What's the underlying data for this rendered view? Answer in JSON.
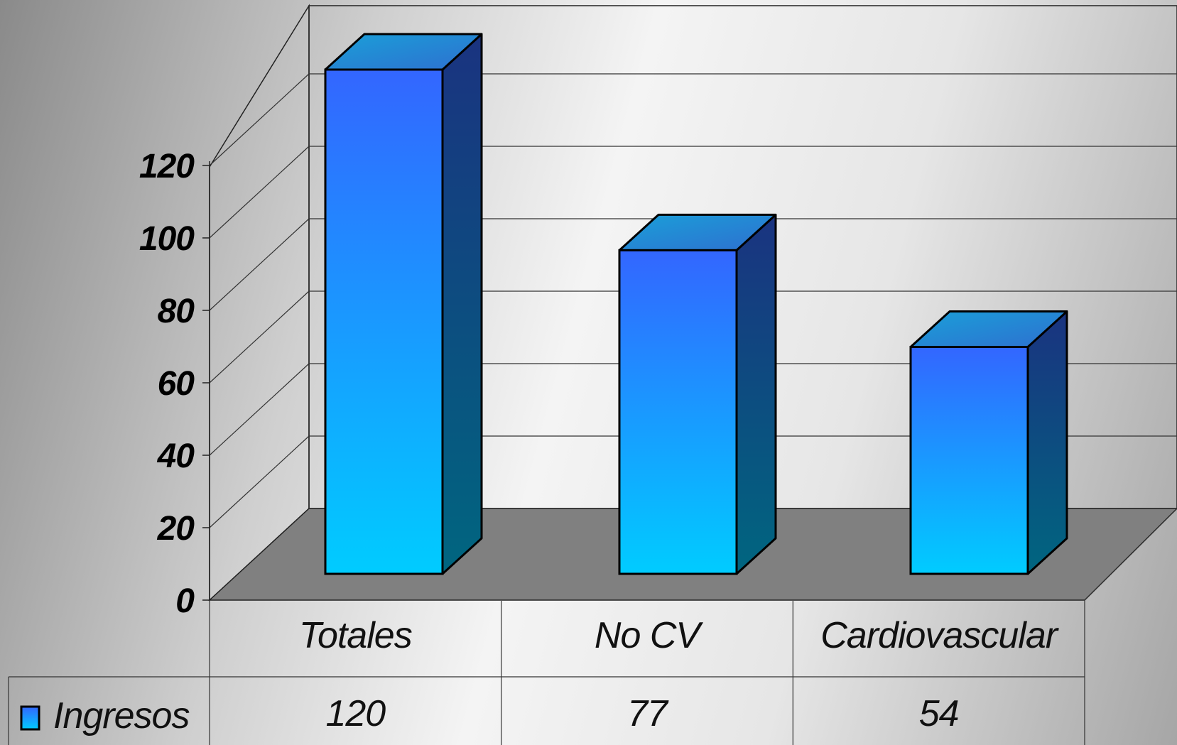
{
  "chart_data": {
    "type": "bar",
    "categories": [
      "Totales",
      "No CV",
      "Cardiovascular"
    ],
    "series": [
      {
        "name": "Ingresos",
        "values": [
          120,
          77,
          54
        ],
        "color_top": "#3366ff",
        "color_bottom": "#00ccff"
      }
    ],
    "yticks": [
      "0",
      "20",
      "40",
      "60",
      "80",
      "100",
      "120"
    ],
    "ylim": [
      0,
      140
    ],
    "grid": true,
    "legend_position": "data-table-left",
    "data_table": true,
    "floor_color": "#808080"
  }
}
